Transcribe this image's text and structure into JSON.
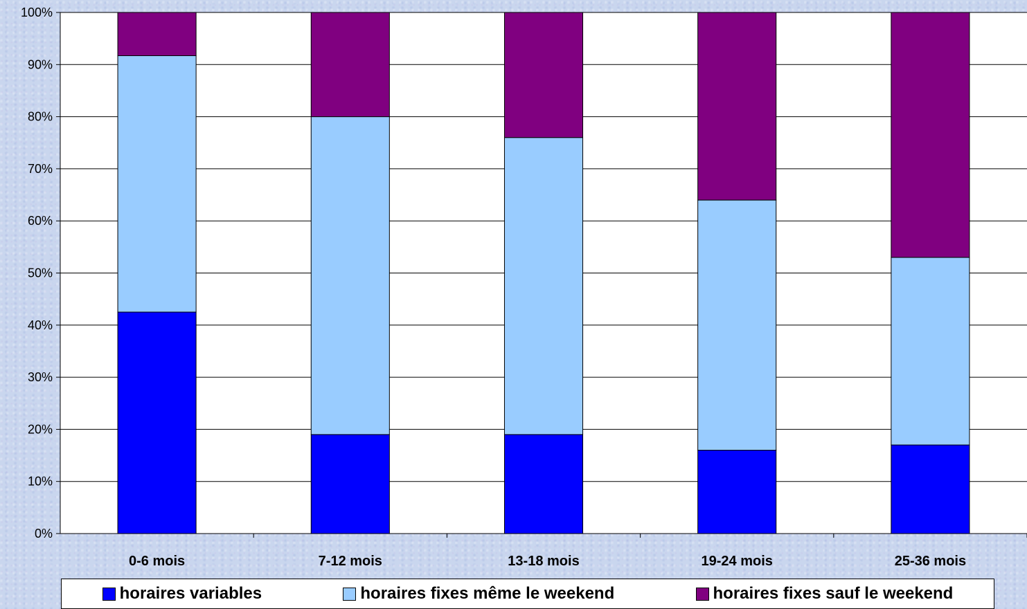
{
  "chart_data": {
    "type": "bar",
    "stacked": true,
    "percent": true,
    "categories": [
      "0-6 mois",
      "7-12 mois",
      "13-18 mois",
      "19-24 mois",
      "25-36 mois"
    ],
    "series": [
      {
        "name": "horaires variables",
        "color": "#0000ff",
        "values": [
          42.5,
          19,
          19,
          16,
          17
        ]
      },
      {
        "name": "horaires fixes même le weekend",
        "color": "#99ccff",
        "values": [
          49.2,
          61,
          57,
          48,
          36
        ]
      },
      {
        "name": "horaires fixes sauf le weekend",
        "color": "#800080",
        "values": [
          8.3,
          20,
          24,
          36,
          47
        ]
      }
    ],
    "yticks": [
      "0%",
      "10%",
      "20%",
      "30%",
      "40%",
      "50%",
      "60%",
      "70%",
      "80%",
      "90%",
      "100%"
    ],
    "ylim": [
      0,
      100
    ],
    "grid": true,
    "legend_position": "bottom",
    "plot_background": "#ffffff"
  }
}
